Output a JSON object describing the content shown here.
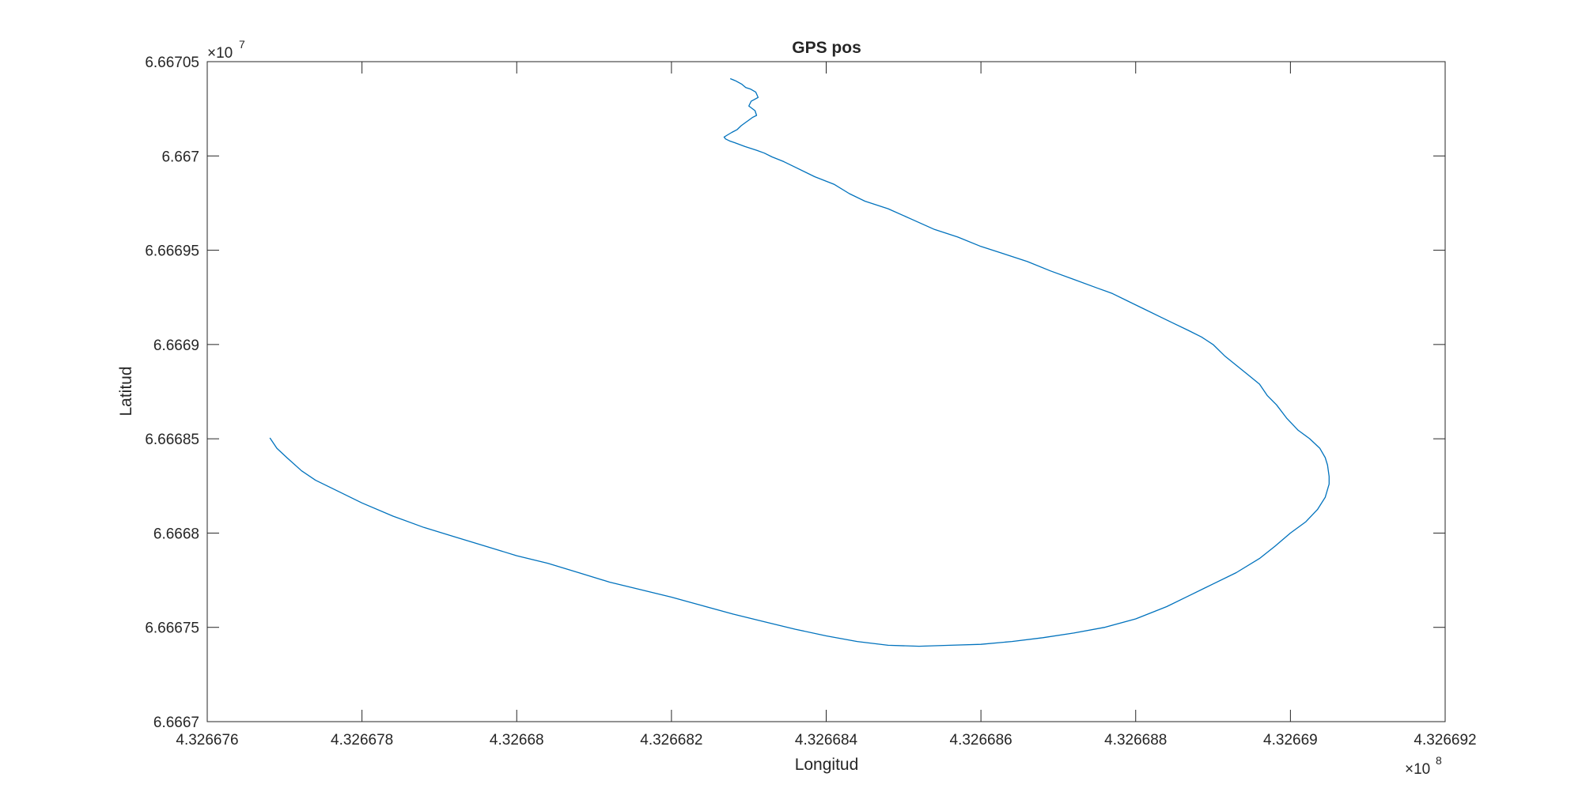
{
  "chart_data": {
    "type": "line",
    "title": "GPS pos",
    "xlabel": "Longitud",
    "ylabel": "Latitud",
    "xlim": [
      432667600,
      432669200
    ],
    "ylim": [
      66667000,
      66670500
    ],
    "grid": false,
    "x_exponent_label": {
      "base": "×10",
      "power": "8"
    },
    "y_exponent_label": {
      "base": "×10",
      "power": "7"
    },
    "xticks": {
      "values": [
        432667600,
        432667800,
        432668000,
        432668200,
        432668400,
        432668600,
        432668800,
        432669000,
        432669200
      ],
      "labels": [
        "4.326676",
        "4.326678",
        "4.32668",
        "4.326682",
        "4.326684",
        "4.326686",
        "4.326688",
        "4.32669",
        "4.326692"
      ]
    },
    "yticks": {
      "values": [
        66667000,
        66667500,
        66668000,
        66668500,
        66669000,
        66669500,
        66670000,
        66670500
      ],
      "labels": [
        "6.6667",
        "6.66675",
        "6.6668",
        "6.66685",
        "6.6669",
        "6.66695",
        "6.667",
        "6.66705"
      ]
    },
    "series": [
      {
        "color": "#0072bd",
        "x": [
          432667681,
          432667690,
          432667703,
          432667722,
          432667740,
          432667770,
          432667800,
          432667840,
          432667880,
          432667920,
          432667960,
          432668000,
          432668040,
          432668080,
          432668120,
          432668160,
          432668200,
          432668240,
          432668280,
          432668320,
          432668360,
          432668400,
          432668440,
          432668480,
          432668520,
          432668560,
          432668600,
          432668640,
          432668680,
          432668720,
          432668760,
          432668800,
          432668840,
          432668870,
          432668900,
          432668930,
          432668960,
          432668980,
          432669000,
          432669020,
          432669035,
          432669045,
          432669050,
          432669050,
          432669048,
          432669045,
          432669038,
          432669025,
          432669010,
          432668995,
          432668982,
          432668970,
          432668960,
          432668945,
          432668930,
          432668915,
          432668900,
          432668885,
          432668868,
          432668850,
          432668830,
          432668810,
          432668790,
          432668770,
          432668750,
          432668720,
          432668690,
          432668660,
          432668630,
          432668600,
          432668570,
          432668540,
          432668510,
          432668480,
          432668450,
          432668430,
          432668410,
          432668385,
          432668360,
          432668345,
          432668330,
          432668320,
          432668310,
          432668295,
          432668282,
          432668275,
          432668270,
          432668268,
          432668272,
          432668278,
          432668285,
          432668290,
          432668295,
          432668300,
          432668305,
          432668310,
          432668308,
          432668300,
          432668303,
          432668312,
          432668309,
          432668302,
          432668296,
          432668291,
          432668283,
          432668279,
          432668282,
          432668276
        ],
        "y": [
          66668505,
          66668450,
          66668400,
          66668330,
          66668280,
          66668220,
          66668160,
          66668090,
          66668030,
          66667980,
          66667930,
          66667880,
          66667840,
          66667790,
          66667740,
          66667700,
          66667660,
          66667615,
          66667570,
          66667530,
          66667490,
          66667455,
          66667425,
          66667405,
          66667400,
          66667405,
          66667410,
          66667425,
          66667445,
          66667470,
          66667500,
          66667545,
          66667610,
          66667670,
          66667730,
          66667790,
          66667865,
          66667930,
          66668000,
          66668060,
          66668125,
          66668190,
          66668260,
          66668300,
          66668360,
          66668400,
          66668450,
          66668500,
          66668545,
          66668610,
          66668680,
          66668730,
          66668790,
          66668840,
          66668890,
          66668940,
          66669000,
          66669040,
          66669075,
          66669110,
          66669150,
          66669190,
          66669230,
          66669270,
          66669300,
          66669345,
          66669390,
          66669440,
          66669480,
          66669520,
          66669570,
          66669610,
          66669665,
          66669720,
          66669760,
          66669800,
          66669850,
          66669890,
          66669940,
          66669970,
          66669995,
          66670015,
          66670030,
          66670050,
          66670070,
          66670080,
          66670090,
          66670100,
          66670110,
          66670125,
          66670140,
          66670160,
          66670175,
          66670190,
          66670205,
          66670215,
          66670240,
          66670265,
          66670290,
          66670310,
          66670338,
          66670355,
          66670363,
          66670380,
          66670398,
          66670405,
          66670400,
          66670410
        ]
      }
    ]
  }
}
